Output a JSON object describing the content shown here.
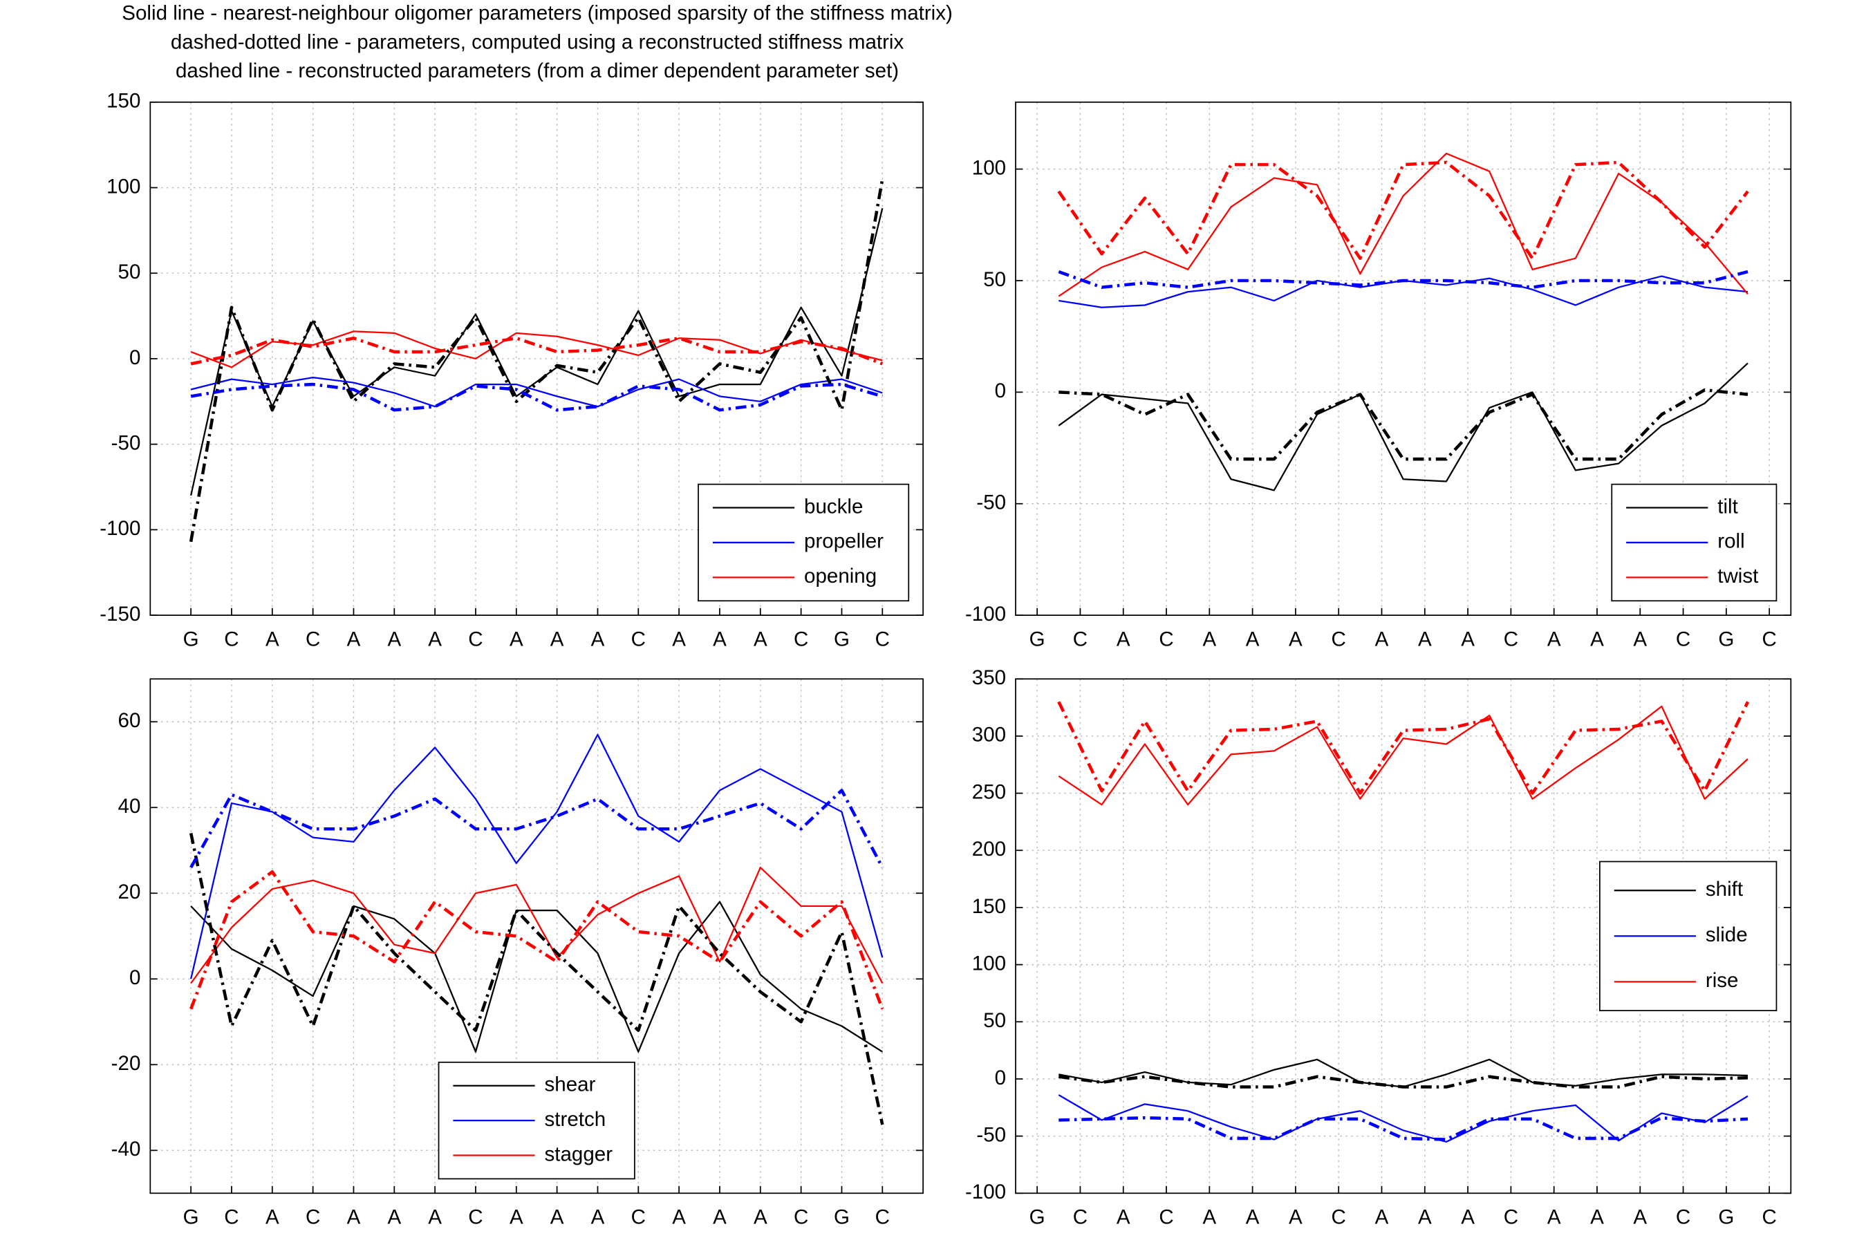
{
  "suptitle": [
    "Solid line - nearest-neighbour oligomer parameters (imposed sparsity of the stiffness matrix)",
    "dashed-dotted line - parameters, computed using a reconstructed stiffness matrix",
    "dashed line - reconstructed parameters (from a dimer dependent parameter set)"
  ],
  "chart_data": [
    {
      "type": "line",
      "categories": [
        "G",
        "C",
        "A",
        "C",
        "A",
        "A",
        "A",
        "C",
        "A",
        "A",
        "A",
        "C",
        "A",
        "A",
        "A",
        "C",
        "G",
        "C"
      ],
      "x": [
        1,
        2,
        3,
        4,
        5,
        6,
        7,
        8,
        9,
        10,
        11,
        12,
        13,
        14,
        15,
        16,
        17,
        18
      ],
      "xlim": [
        0,
        19
      ],
      "ylim": [
        -150,
        150
      ],
      "yticks": [
        -150,
        -100,
        -50,
        0,
        50,
        100,
        150
      ],
      "grid": true,
      "legend": "lower right",
      "series": [
        {
          "name": "buckle",
          "color": "#000000",
          "style": "solid",
          "values": [
            -80,
            28,
            -28,
            22,
            -22,
            -5,
            -10,
            26,
            -22,
            -5,
            -15,
            28,
            -22,
            -15,
            -15,
            30,
            -10,
            88
          ]
        },
        {
          "name": "propeller",
          "color": "#0000ff",
          "style": "solid",
          "values": [
            -18,
            -12,
            -15,
            -11,
            -14,
            -20,
            -28,
            -15,
            -15,
            -22,
            -28,
            -18,
            -12,
            -22,
            -25,
            -15,
            -12,
            -20
          ]
        },
        {
          "name": "opening",
          "color": "#ff0000",
          "style": "solid",
          "values": [
            4,
            -5,
            10,
            8,
            16,
            15,
            6,
            0,
            15,
            13,
            8,
            2,
            12,
            11,
            3,
            11,
            5,
            -1
          ]
        },
        {
          "color": "#000000",
          "style": "dashdot",
          "values": [
            -107,
            30,
            -30,
            23,
            -25,
            -3,
            -5,
            24,
            -25,
            -4,
            -8,
            24,
            -25,
            -3,
            -8,
            24,
            -30,
            105
          ]
        },
        {
          "color": "#0000ff",
          "style": "dashdot",
          "values": [
            -22,
            -18,
            -16,
            -15,
            -18,
            -30,
            -28,
            -16,
            -18,
            -30,
            -28,
            -16,
            -18,
            -30,
            -27,
            -16,
            -15,
            -22
          ]
        },
        {
          "color": "#ff0000",
          "style": "dashdot",
          "values": [
            -3,
            2,
            11,
            7,
            12,
            4,
            4,
            8,
            12,
            4,
            5,
            8,
            12,
            4,
            4,
            10,
            6,
            -3
          ]
        }
      ]
    },
    {
      "type": "line",
      "categories": [
        "G",
        "C",
        "A",
        "C",
        "A",
        "A",
        "A",
        "C",
        "A",
        "A",
        "A",
        "C",
        "A",
        "A",
        "A",
        "C",
        "G",
        "C"
      ],
      "x": [
        1.5,
        2.5,
        3.5,
        4.5,
        5.5,
        6.5,
        7.5,
        8.5,
        9.5,
        10.5,
        11.5,
        12.5,
        13.5,
        14.5,
        15.5,
        16.5,
        17.5
      ],
      "xlim": [
        0.5,
        18.5
      ],
      "ylim": [
        -100,
        130
      ],
      "yticks": [
        -100,
        -50,
        0,
        50,
        100
      ],
      "grid": true,
      "legend": "lower right",
      "series": [
        {
          "name": "tilt",
          "color": "#000000",
          "style": "solid",
          "values": [
            -15,
            -1,
            -3,
            -5,
            -39,
            -44,
            -10,
            -1,
            -39,
            -40,
            -7,
            0,
            -35,
            -32,
            -15,
            -5,
            13
          ]
        },
        {
          "name": "roll",
          "color": "#0000ff",
          "style": "solid",
          "values": [
            41,
            38,
            39,
            45,
            47,
            41,
            50,
            47,
            50,
            48,
            51,
            46,
            39,
            47,
            52,
            47,
            45
          ]
        },
        {
          "name": "twist",
          "color": "#ff0000",
          "style": "solid",
          "values": [
            43,
            56,
            63,
            55,
            83,
            96,
            93,
            53,
            88,
            107,
            99,
            55,
            60,
            98,
            85,
            67,
            44
          ]
        },
        {
          "color": "#000000",
          "style": "dashdot",
          "values": [
            0,
            -1,
            -10,
            -1,
            -30,
            -30,
            -9,
            -1,
            -30,
            -30,
            -9,
            -1,
            -30,
            -30,
            -10,
            1,
            -1
          ]
        },
        {
          "color": "#0000ff",
          "style": "dashdot",
          "values": [
            54,
            47,
            49,
            47,
            50,
            50,
            49,
            48,
            50,
            50,
            49,
            47,
            50,
            50,
            49,
            49,
            54
          ]
        },
        {
          "color": "#ff0000",
          "style": "dashdot",
          "values": [
            90,
            62,
            87,
            62,
            102,
            102,
            88,
            60,
            102,
            103,
            88,
            60,
            102,
            103,
            85,
            65,
            90
          ]
        }
      ]
    },
    {
      "type": "line",
      "categories": [
        "G",
        "C",
        "A",
        "C",
        "A",
        "A",
        "A",
        "C",
        "A",
        "A",
        "A",
        "C",
        "A",
        "A",
        "A",
        "C",
        "G",
        "C"
      ],
      "x": [
        1,
        2,
        3,
        4,
        5,
        6,
        7,
        8,
        9,
        10,
        11,
        12,
        13,
        14,
        15,
        16,
        17,
        18
      ],
      "xlim": [
        0,
        19
      ],
      "ylim": [
        -50,
        70
      ],
      "yticks": [
        -40,
        -20,
        0,
        20,
        40,
        60
      ],
      "grid": true,
      "legend": "lower center",
      "series": [
        {
          "name": "shear",
          "color": "#000000",
          "style": "solid",
          "values": [
            17,
            7,
            2,
            -4,
            17,
            14,
            6,
            -17,
            16,
            16,
            6,
            -17,
            6,
            18,
            1,
            -7,
            -11,
            -17
          ]
        },
        {
          "name": "stretch",
          "color": "#0000ff",
          "style": "solid",
          "values": [
            0,
            41,
            39,
            33,
            32,
            44,
            54,
            42,
            27,
            39,
            57,
            38,
            32,
            44,
            49,
            44,
            39,
            5
          ]
        },
        {
          "name": "stagger",
          "color": "#ff0000",
          "style": "solid",
          "values": [
            -1,
            12,
            21,
            23,
            20,
            8,
            6,
            20,
            22,
            5,
            15,
            20,
            24,
            4,
            26,
            17,
            17,
            -1
          ]
        },
        {
          "color": "#000000",
          "style": "dashdot",
          "values": [
            34,
            -11,
            9,
            -11,
            17,
            6,
            -3,
            -12,
            16,
            6,
            -3,
            -12,
            17,
            6,
            -3,
            -10,
            11,
            -34
          ]
        },
        {
          "color": "#0000ff",
          "style": "dashdot",
          "values": [
            26,
            43,
            39,
            35,
            35,
            38,
            42,
            35,
            35,
            38,
            42,
            35,
            35,
            38,
            41,
            35,
            44,
            26
          ]
        },
        {
          "color": "#ff0000",
          "style": "dashdot",
          "values": [
            -7,
            18,
            25,
            11,
            10,
            4,
            18,
            11,
            10,
            4,
            18,
            11,
            10,
            4,
            18,
            10,
            18,
            -7
          ]
        }
      ]
    },
    {
      "type": "line",
      "categories": [
        "G",
        "C",
        "A",
        "C",
        "A",
        "A",
        "A",
        "C",
        "A",
        "A",
        "A",
        "C",
        "A",
        "A",
        "A",
        "C",
        "G",
        "C"
      ],
      "x": [
        1.5,
        2.5,
        3.5,
        4.5,
        5.5,
        6.5,
        7.5,
        8.5,
        9.5,
        10.5,
        11.5,
        12.5,
        13.5,
        14.5,
        15.5,
        16.5,
        17.5
      ],
      "xlim": [
        0.5,
        18.5
      ],
      "ylim": [
        -100,
        350
      ],
      "yticks": [
        -100,
        -50,
        0,
        50,
        100,
        150,
        200,
        250,
        300,
        350
      ],
      "grid": true,
      "legend": "center right",
      "series": [
        {
          "name": "shift",
          "color": "#000000",
          "style": "solid",
          "values": [
            4,
            -3,
            6,
            -3,
            -5,
            8,
            17,
            -3,
            -7,
            4,
            17,
            -3,
            -6,
            0,
            4,
            4,
            3
          ]
        },
        {
          "name": "slide",
          "color": "#0000ff",
          "style": "solid",
          "values": [
            -14,
            -36,
            -22,
            -28,
            -42,
            -53,
            -35,
            -28,
            -45,
            -55,
            -37,
            -28,
            -23,
            -54,
            -30,
            -38,
            -15
          ]
        },
        {
          "name": "rise",
          "color": "#ff0000",
          "style": "solid",
          "values": [
            265,
            240,
            293,
            240,
            284,
            287,
            308,
            245,
            298,
            293,
            318,
            245,
            272,
            297,
            326,
            245,
            280
          ]
        },
        {
          "color": "#000000",
          "style": "dashdot",
          "values": [
            2,
            -3,
            2,
            -3,
            -7,
            -7,
            2,
            -3,
            -7,
            -7,
            2,
            -3,
            -7,
            -7,
            2,
            0,
            1
          ]
        },
        {
          "color": "#0000ff",
          "style": "dashdot",
          "values": [
            -36,
            -35,
            -34,
            -35,
            -52,
            -52,
            -35,
            -35,
            -52,
            -53,
            -35,
            -35,
            -52,
            -52,
            -34,
            -37,
            -35
          ]
        },
        {
          "color": "#ff0000",
          "style": "dashdot",
          "values": [
            330,
            252,
            313,
            252,
            305,
            306,
            313,
            250,
            305,
            306,
            315,
            250,
            305,
            306,
            313,
            252,
            330
          ]
        }
      ]
    }
  ]
}
